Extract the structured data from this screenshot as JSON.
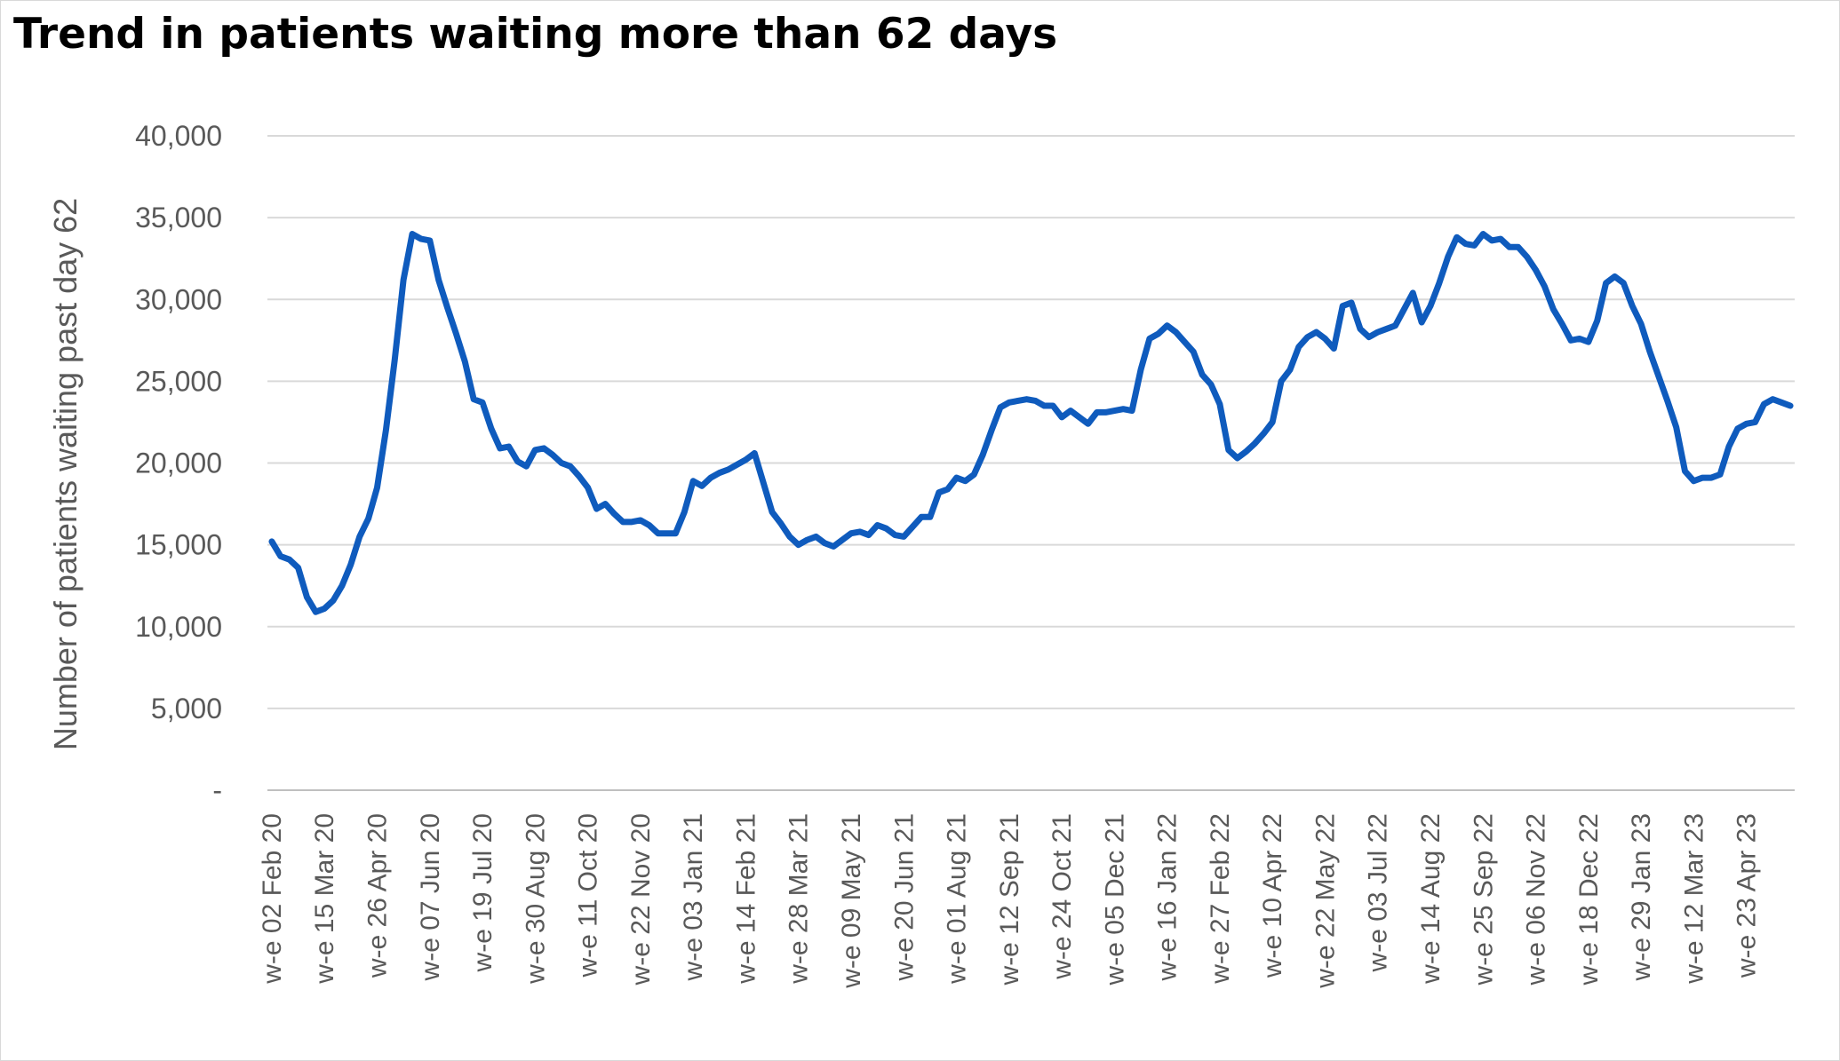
{
  "chart_data": {
    "type": "line",
    "title": "Trend in patients waiting more than 62 days",
    "xlabel": "",
    "ylabel": "Number of patients waiting past day 62",
    "ylim": [
      0,
      40000
    ],
    "y_ticks": [
      "-",
      "5,000",
      "10,000",
      "15,000",
      "20,000",
      "25,000",
      "30,000",
      "35,000",
      "40,000"
    ],
    "grid": true,
    "legend": "none",
    "colors": {
      "line": "#0f5bbd",
      "grid": "#d9d9d9",
      "text": "#595959"
    },
    "x_tick_labels": [
      "w-e 02 Feb 20",
      "w-e 15 Mar 20",
      "w-e 26 Apr 20",
      "w-e 07 Jun 20",
      "w-e 19 Jul 20",
      "w-e 30 Aug 20",
      "w-e 11 Oct 20",
      "w-e 22 Nov 20",
      "w-e 03 Jan 21",
      "w-e 14 Feb 21",
      "w-e 28 Mar 21",
      "w-e 09 May 21",
      "w-e 20 Jun 21",
      "w-e 01 Aug 21",
      "w-e 12 Sep 21",
      "w-e 24 Oct 21",
      "w-e 05 Dec 21",
      "w-e 16 Jan 22",
      "w-e 27 Feb 22",
      "w-e 10 Apr 22",
      "w-e 22 May 22",
      "w-e 03 Jul 22",
      "w-e 14 Aug 22",
      "w-e 25 Sep 22",
      "w-e 06 Nov 22",
      "w-e 18 Dec 22",
      "w-e 29 Jan 23",
      "w-e 12 Mar 23",
      "w-e 23 Apr 23"
    ],
    "series": [
      {
        "values": [
          15200,
          14300,
          14100,
          13600,
          11800,
          10900,
          11100,
          11600,
          12500,
          13800,
          15500,
          16600,
          18500,
          22000,
          26300,
          31200,
          34000,
          33700,
          33600,
          31200,
          29500,
          27900,
          26200,
          23900,
          23700,
          22100,
          20900,
          21000,
          20100,
          19800,
          20800,
          20900,
          20500,
          20000,
          19800,
          19200,
          18500,
          17200,
          17500,
          16900,
          16400,
          16400,
          16500,
          16200,
          15700,
          15700,
          15700,
          17000,
          18900,
          18600,
          19100,
          19400,
          19600,
          19900,
          20200,
          20600,
          18800,
          17000,
          16300,
          15500,
          15000,
          15300,
          15500,
          15100,
          14900,
          15300,
          15700,
          15800,
          15600,
          16200,
          16000,
          15600,
          15500,
          16100,
          16700,
          16700,
          18200,
          18400,
          19100,
          18900,
          19300,
          20500,
          22000,
          23400,
          23700,
          23800,
          23900,
          23800,
          23500,
          23500,
          22800,
          23200,
          22800,
          22400,
          23100,
          23100,
          23200,
          23300,
          23200,
          25700,
          27600,
          27900,
          28400,
          28000,
          27400,
          26800,
          25400,
          24800,
          23600,
          20800,
          20300,
          20700,
          21200,
          21800,
          22500,
          25000,
          25700,
          27100,
          27700,
          28000,
          27600,
          27000,
          29600,
          29800,
          28200,
          27700,
          28000,
          28200,
          28400,
          29400,
          30400,
          28600,
          29600,
          31000,
          32600,
          33800,
          33400,
          33300,
          34000,
          33600,
          33700,
          33200,
          33200,
          32600,
          31800,
          30800,
          29400,
          28500,
          27500,
          27600,
          27400,
          28700,
          31000,
          31400,
          31000,
          29600,
          28500,
          26800,
          25300,
          23800,
          22200,
          19500,
          18900,
          19100,
          19100,
          19300,
          21000,
          22100,
          22400,
          22500,
          23600,
          23900,
          23700,
          23500
        ]
      }
    ]
  }
}
